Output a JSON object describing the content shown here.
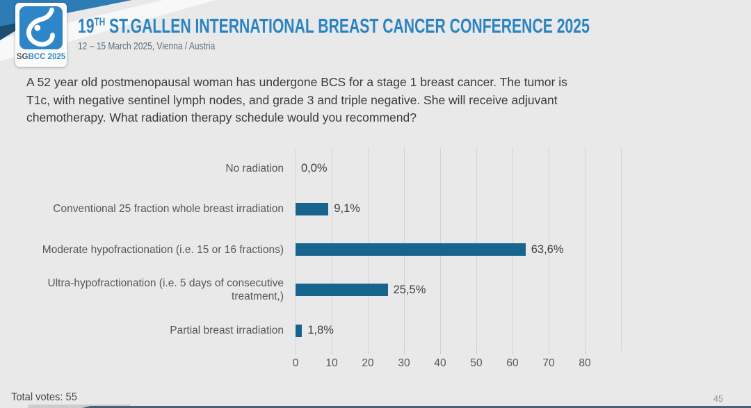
{
  "header": {
    "logo": {
      "badge_bold": "SG",
      "badge_rest": "BCC 2025",
      "square_color": "#2f86c6"
    },
    "title_number": "19",
    "title_sup": "TH",
    "title_rest": "ST.GALLEN INTERNATIONAL BREAST CANCER CONFERENCE 2025",
    "subtitle": "12 – 15 March 2025, Vienna / Austria",
    "colors": {
      "title_blue": "#2b84c2",
      "ribbon_blue": "#2d7cb5",
      "ribbon_navy": "#1c4d73"
    }
  },
  "question": {
    "lines": [
      "A 52 year old postmenopausal woman has undergone BCS for a stage 1 breast cancer.  The tumor is",
      "T1c, with negative sentinel lymph nodes, and grade 3 and triple negative.  She will receive adjuvant",
      "chemotherapy. What radiation therapy schedule would you recommend?"
    ]
  },
  "chart_data": {
    "type": "bar",
    "orientation": "horizontal",
    "title": "",
    "xlabel": "",
    "ylabel": "",
    "categories": [
      "No radiation",
      "Conventional 25 fraction whole breast irradiation",
      "Moderate hypofractionation (i.e. 15 or 16 fractions)",
      "Ultra-hypofractionation (i.e. 5 days of consecutive treatment,)",
      "Partial breast irradiation"
    ],
    "values": [
      0.0,
      9.1,
      63.6,
      25.5,
      1.8
    ],
    "data_labels": [
      "0,0%",
      "9,1%",
      "63,6%",
      "25,5%",
      "1,8%"
    ],
    "x_ticks": [
      0,
      10,
      20,
      30,
      40,
      50,
      60,
      70,
      80
    ],
    "xlim": [
      0,
      90
    ],
    "grid": true,
    "legend": false,
    "bar_color": "#17648f"
  },
  "footer": {
    "total_votes": "Total votes: 55",
    "page_number": "45"
  }
}
